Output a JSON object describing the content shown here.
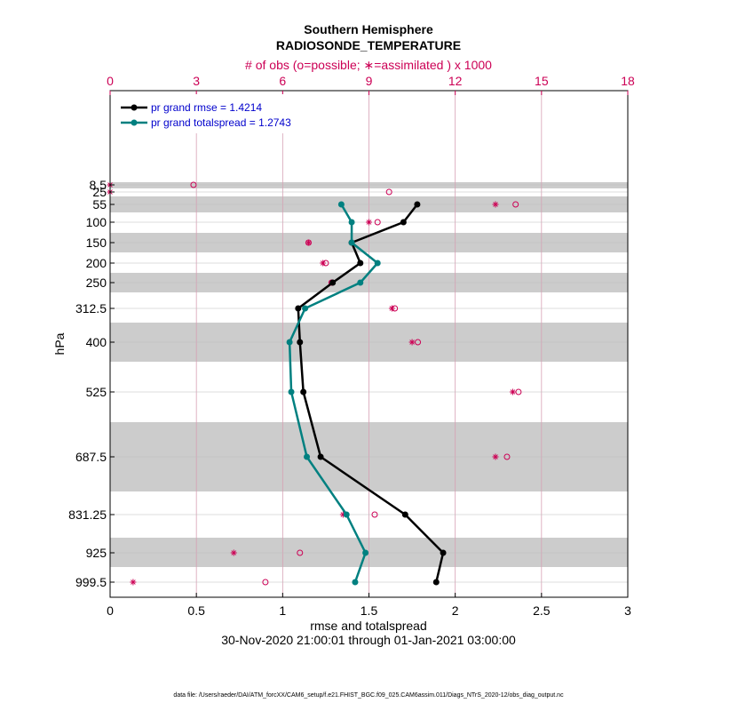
{
  "chart_data": {
    "type": "line",
    "title": "Southern Hemisphere",
    "subtitle": "RADIOSONDE_TEMPERATURE",
    "top_axis_label": "# of obs (o=possible; ∗=assimilated ) x 1000",
    "xlabel": "rmse and totalspread",
    "ylabel": "hPa",
    "date_range": "30-Nov-2020 21:00:01 through 01-Jan-2021 03:00:00",
    "footer": "data file: /Users/raeder/DAI/ATM_forcXX/CAM6_setup/f.e21.FHIST_BGC.f09_025.CAM6assim.011/Diags_NTrS_2020-12/obs_diag_output.nc",
    "xlim": [
      0,
      3
    ],
    "x_ticks": [
      "0",
      "0.5",
      "1",
      "1.5",
      "2",
      "2.5",
      "3"
    ],
    "top_xlim": [
      0,
      18
    ],
    "top_ticks": [
      "0",
      "3",
      "6",
      "9",
      "12",
      "15",
      "18"
    ],
    "levels": [
      8.5,
      25,
      55,
      100,
      150,
      200,
      250,
      312.5,
      400,
      525,
      687.5,
      831.25,
      925,
      999.5
    ],
    "level_labels": [
      "8.5",
      "25",
      "55",
      "100",
      "150",
      "200",
      "250",
      "312.5",
      "400",
      "525",
      "687.5",
      "831.25",
      "925",
      "999.5"
    ],
    "series": [
      {
        "name": "pr grand rmse",
        "legend": "pr grand rmse = 1.4214",
        "color": "#000000",
        "levels": [
          55,
          100,
          150,
          200,
          250,
          312.5,
          400,
          525,
          687.5,
          831.25,
          925,
          999.5
        ],
        "values": [
          1.78,
          1.7,
          1.4,
          1.45,
          1.29,
          1.09,
          1.1,
          1.12,
          1.22,
          1.71,
          1.93,
          1.89
        ]
      },
      {
        "name": "pr grand totalspread",
        "legend": "pr grand totalspread = 1.2743",
        "color": "#008080",
        "levels": [
          55,
          100,
          150,
          200,
          250,
          312.5,
          400,
          525,
          687.5,
          831.25,
          925,
          999.5
        ],
        "values": [
          1.34,
          1.4,
          1.4,
          1.55,
          1.45,
          1.13,
          1.04,
          1.05,
          1.14,
          1.37,
          1.48,
          1.42
        ]
      }
    ],
    "obs_possible": {
      "levels": [
        8.5,
        25,
        55,
        100,
        150,
        200,
        250,
        312.5,
        400,
        525,
        687.5,
        831.25,
        925,
        999.5
      ],
      "values_thousands": [
        2.9,
        9.7,
        14.1,
        9.3,
        6.9,
        7.5,
        7.7,
        9.9,
        10.7,
        14.2,
        13.8,
        9.2,
        6.6,
        5.4
      ]
    },
    "obs_assimilated": {
      "levels": [
        8.5,
        25,
        55,
        100,
        150,
        200,
        250,
        312.5,
        400,
        525,
        687.5,
        831.25,
        925,
        999.5
      ],
      "values_thousands": [
        0.0,
        0.0,
        13.4,
        9.0,
        6.9,
        7.4,
        7.7,
        9.8,
        10.5,
        14.0,
        13.4,
        8.1,
        4.3,
        0.8
      ]
    }
  }
}
